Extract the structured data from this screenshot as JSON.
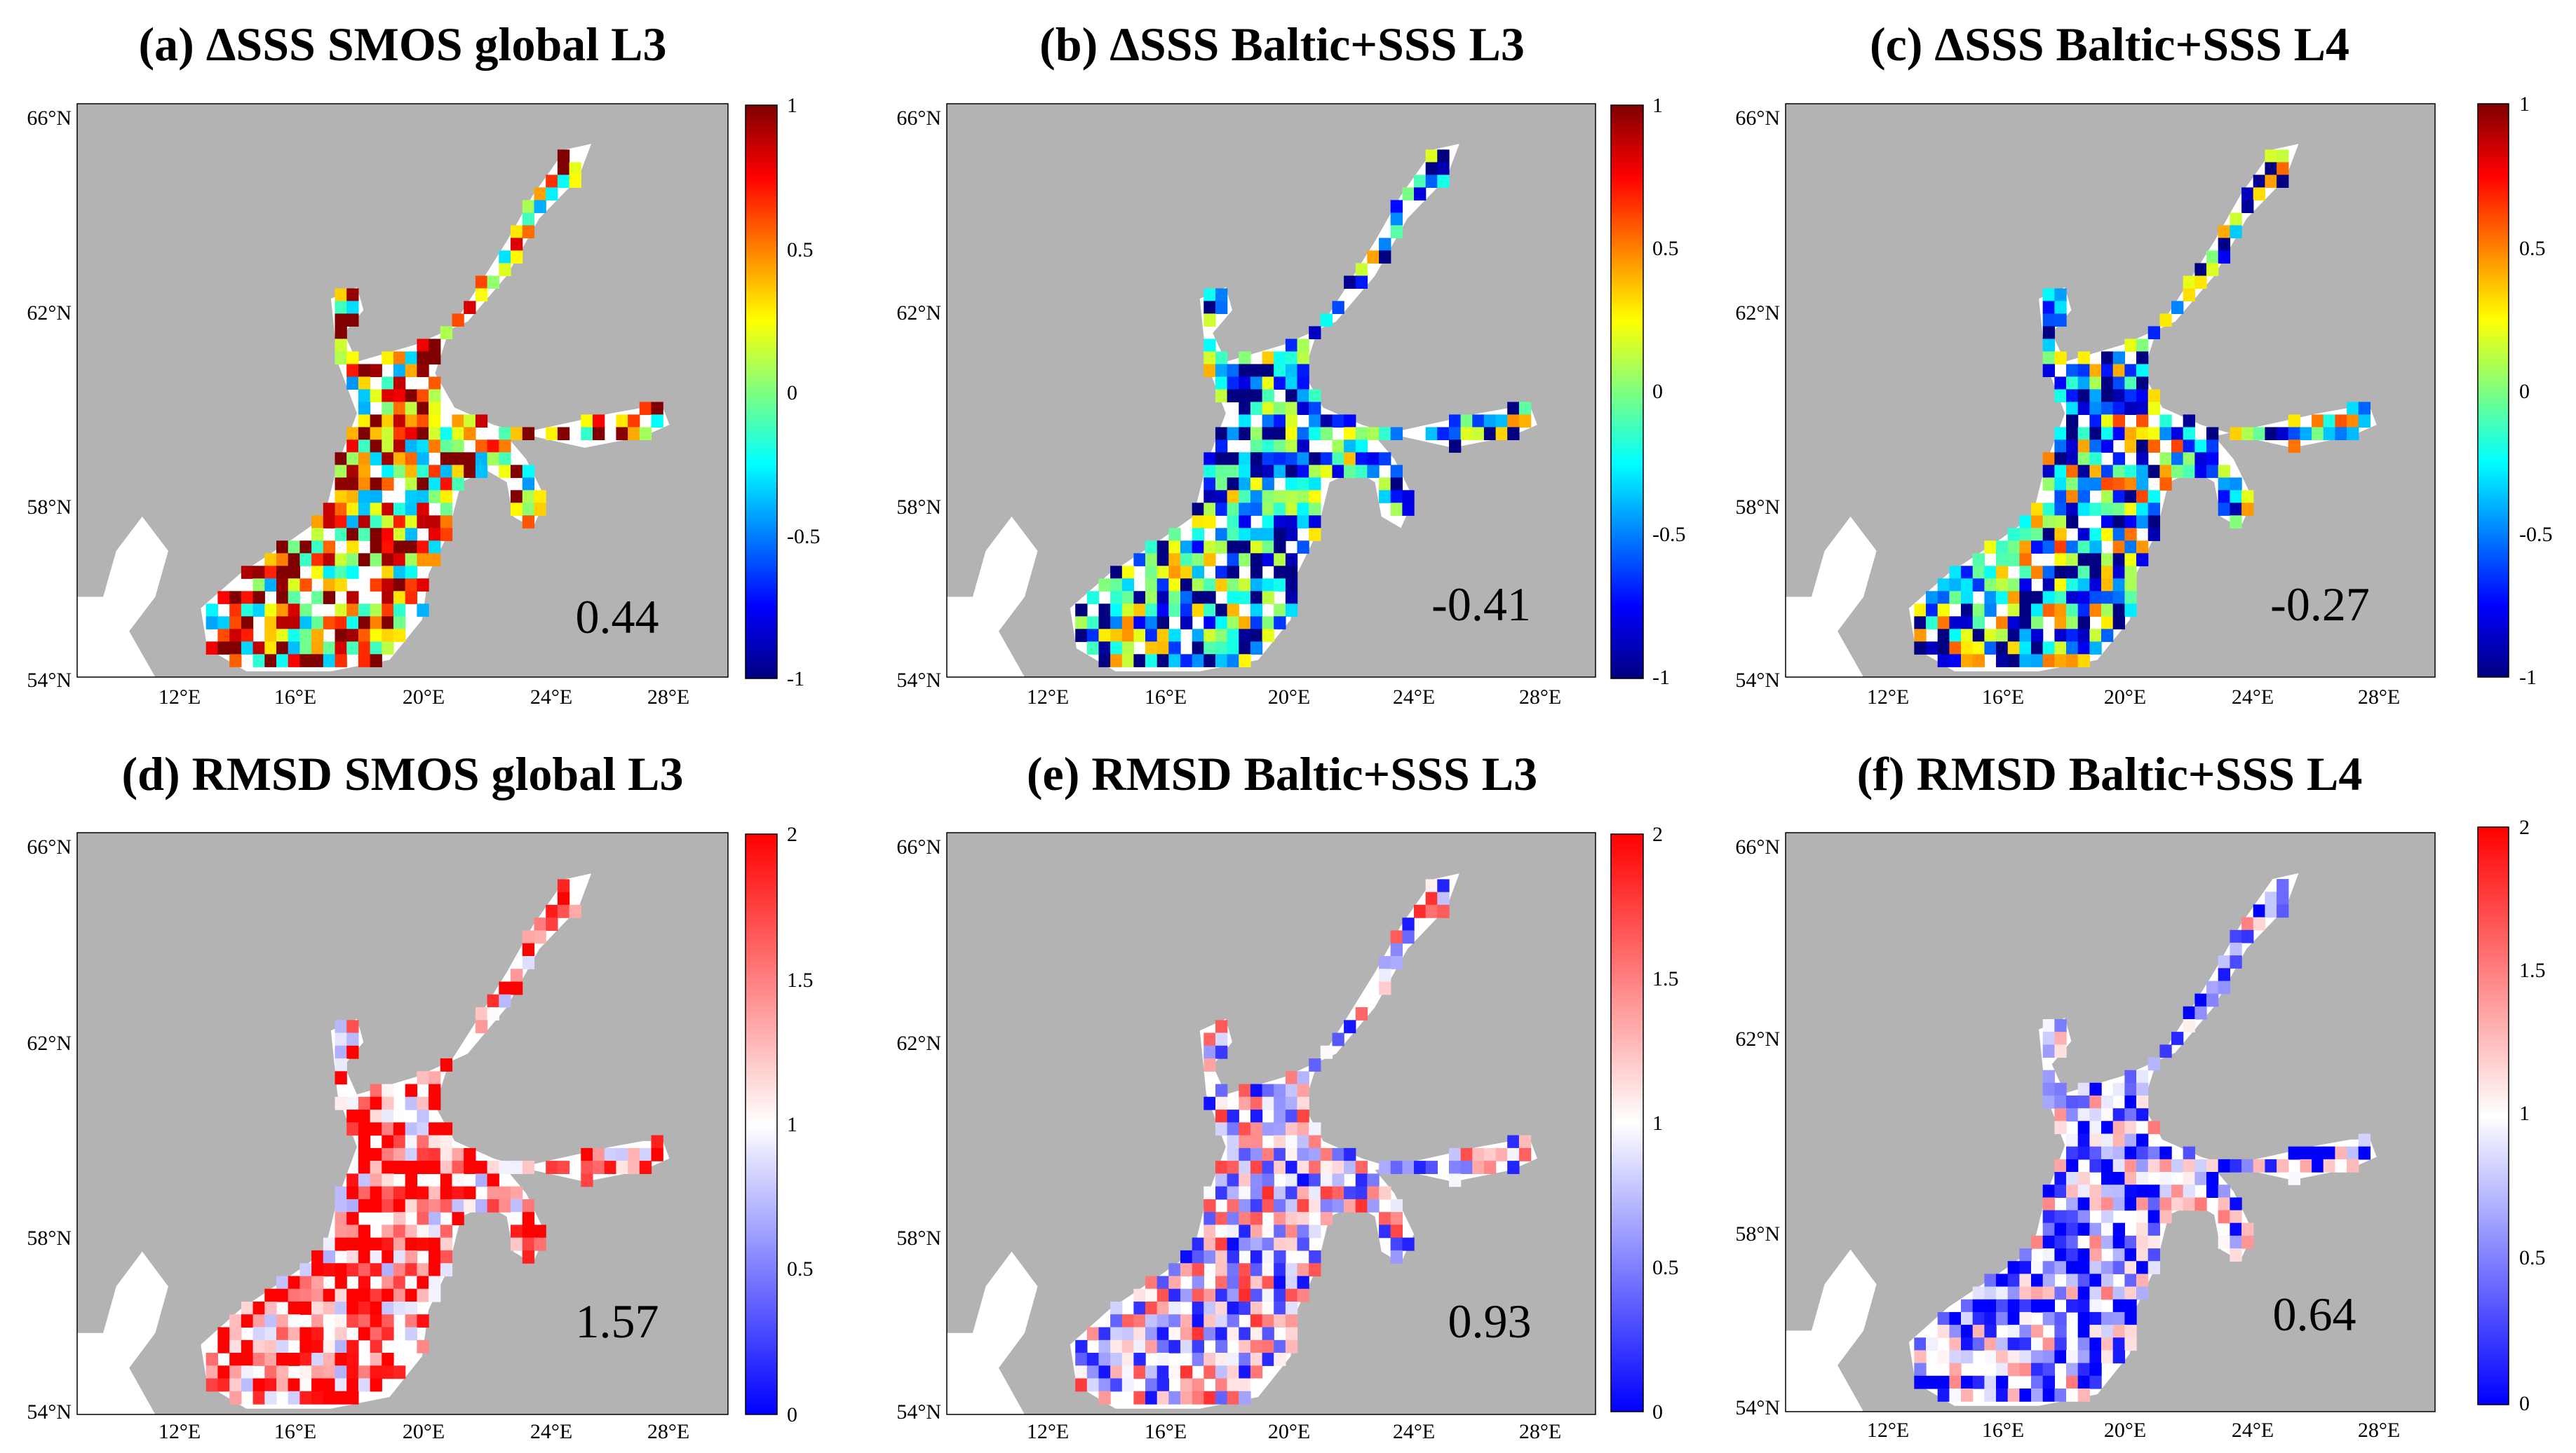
{
  "figure": {
    "panels": [
      {
        "title": "(a) ΔSSS SMOS global L3",
        "stat_value": "0.44",
        "colormap": "jet",
        "mean_value": 0.44,
        "colorbar": {
          "labels": [
            "1",
            "0.5",
            "0",
            "-0.5",
            "-1"
          ],
          "range": [
            -1,
            1
          ]
        },
        "lat_labels": [
          "66°N",
          "62°N",
          "58°N",
          "54°N"
        ],
        "lon_labels": [
          "12°E",
          "16°E",
          "20°E",
          "24°E",
          "28°E"
        ]
      },
      {
        "title": "(b) ΔSSS Baltic+SSS L3",
        "stat_value": "-0.41",
        "colormap": "jet",
        "mean_value": -0.41,
        "colorbar": {
          "labels": [
            "1",
            "0.5",
            "0",
            "-0.5",
            "-1"
          ],
          "range": [
            -1,
            1
          ]
        },
        "lat_labels": [
          "66°N",
          "62°N",
          "58°N",
          "54°N"
        ],
        "lon_labels": [
          "12°E",
          "16°E",
          "20°E",
          "24°E",
          "28°E"
        ]
      },
      {
        "title": "(c) ΔSSS Baltic+SSS L4",
        "stat_value": "-0.27",
        "colormap": "jet",
        "mean_value": -0.27,
        "colorbar": {
          "labels": [
            "1",
            "0.5",
            "0",
            "-0.5",
            "-1"
          ],
          "range": [
            -1,
            1
          ]
        },
        "lat_labels": [
          "66°N",
          "62°N",
          "58°N",
          "54°N"
        ],
        "lon_labels": [
          "12°E",
          "16°E",
          "20°E",
          "24°E",
          "28°E"
        ]
      },
      {
        "title": "(d) RMSD SMOS global L3",
        "stat_value": "1.57",
        "colormap": "bwr",
        "mean_value": 1.57,
        "colorbar": {
          "labels": [
            "2",
            "1.5",
            "1",
            "0.5",
            "0"
          ],
          "range": [
            0,
            2
          ]
        },
        "lat_labels": [
          "66°N",
          "62°N",
          "58°N",
          "54°N"
        ],
        "lon_labels": [
          "12°E",
          "16°E",
          "20°E",
          "24°E",
          "28°E"
        ]
      },
      {
        "title": "(e) RMSD Baltic+SSS L3",
        "stat_value": "0.93",
        "colormap": "bwr",
        "mean_value": 0.93,
        "colorbar": {
          "labels": [
            "2",
            "1.5",
            "1",
            "0.5",
            "0"
          ],
          "range": [
            0,
            2
          ]
        },
        "lat_labels": [
          "66°N",
          "62°N",
          "58°N",
          "54°N"
        ],
        "lon_labels": [
          "12°E",
          "16°E",
          "20°E",
          "24°E",
          "28°E"
        ]
      },
      {
        "title": "(f) RMSD Baltic+SSS L4",
        "stat_value": "0.64",
        "colormap": "bwr",
        "mean_value": 0.64,
        "colorbar": {
          "labels": [
            "2",
            "1.5",
            "1",
            "0.5",
            "0"
          ],
          "range": [
            0,
            2
          ]
        },
        "lat_labels": [
          "66°N",
          "62°N",
          "58°N",
          "54°N"
        ],
        "lon_labels": [
          "12°E",
          "16°E",
          "20°E",
          "24°E",
          "28°E"
        ]
      }
    ],
    "colors": {
      "land": "#b3b3b3",
      "sea_nodata": "#ffffff",
      "frame": "#000000"
    }
  }
}
